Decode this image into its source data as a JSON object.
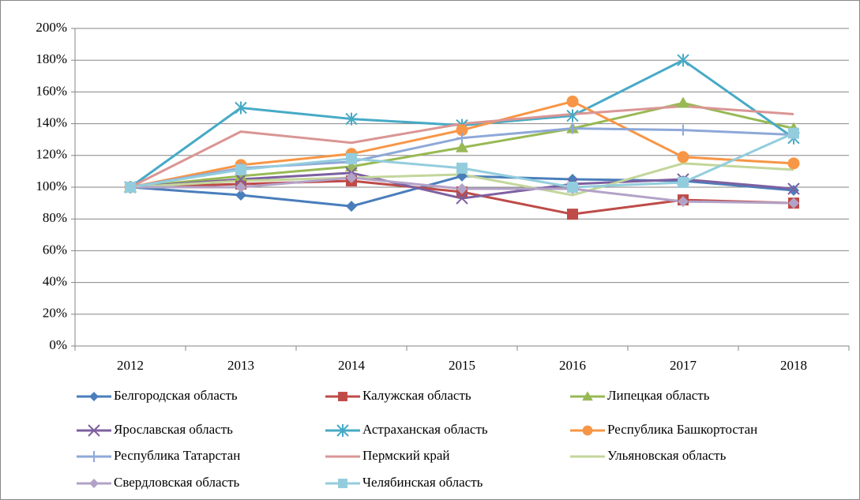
{
  "chart_data": {
    "type": "line",
    "categories": [
      "2012",
      "2013",
      "2014",
      "2015",
      "2016",
      "2017",
      "2018"
    ],
    "ylim": [
      0,
      200
    ],
    "yticks": [
      {
        "value": 0,
        "label": "0%"
      },
      {
        "value": 20,
        "label": "20%"
      },
      {
        "value": 40,
        "label": "40%"
      },
      {
        "value": 60,
        "label": "60%"
      },
      {
        "value": 80,
        "label": "80%"
      },
      {
        "value": 100,
        "label": "100%"
      },
      {
        "value": 120,
        "label": "120%"
      },
      {
        "value": 140,
        "label": "140%"
      },
      {
        "value": 160,
        "label": "160%"
      },
      {
        "value": 180,
        "label": "180%"
      },
      {
        "value": 200,
        "label": "200%"
      }
    ],
    "grid": true,
    "legend": "bottom",
    "series": [
      {
        "name": "Белгородская область",
        "color": "#4a7ebb",
        "marker": "diamond",
        "values": [
          100,
          95,
          88,
          107,
          105,
          104,
          98
        ]
      },
      {
        "name": "Калужская область",
        "color": "#be4b48",
        "marker": "square",
        "values": [
          100,
          102,
          104,
          97,
          83,
          92,
          90
        ]
      },
      {
        "name": "Липецкая область",
        "color": "#98b954",
        "marker": "triangle",
        "values": [
          100,
          107,
          113,
          125,
          137,
          153,
          137
        ]
      },
      {
        "name": "Ярославская область",
        "color": "#7d60a0",
        "marker": "x",
        "values": [
          100,
          105,
          109,
          93,
          102,
          105,
          99
        ]
      },
      {
        "name": "Астраханская область",
        "color": "#46aac5",
        "marker": "star",
        "values": [
          100,
          150,
          143,
          139,
          145,
          180,
          131
        ]
      },
      {
        "name": "Республика Башкортостан",
        "color": "#f79646",
        "marker": "circle",
        "values": [
          100,
          114,
          121,
          136,
          154,
          119,
          115
        ]
      },
      {
        "name": "Республика Татарстан",
        "color": "#8ea8d8",
        "marker": "plus",
        "values": [
          100,
          112,
          116,
          131,
          137,
          136,
          133
        ]
      },
      {
        "name": "Пермский край",
        "color": "#d99694",
        "marker": "none",
        "values": [
          100,
          135,
          128,
          140,
          146,
          151,
          146
        ]
      },
      {
        "name": "Ульяновская область",
        "color": "#c3d69b",
        "marker": "none",
        "values": [
          100,
          104,
          106,
          108,
          95,
          115,
          111
        ]
      },
      {
        "name": "Свердловская область",
        "color": "#b3a2c7",
        "marker": "diamond",
        "values": [
          100,
          100,
          106,
          99,
          99,
          91,
          90
        ]
      },
      {
        "name": "Челябинская область",
        "color": "#93cddd",
        "marker": "square",
        "values": [
          100,
          111,
          118,
          112,
          100,
          103,
          134
        ]
      }
    ]
  }
}
